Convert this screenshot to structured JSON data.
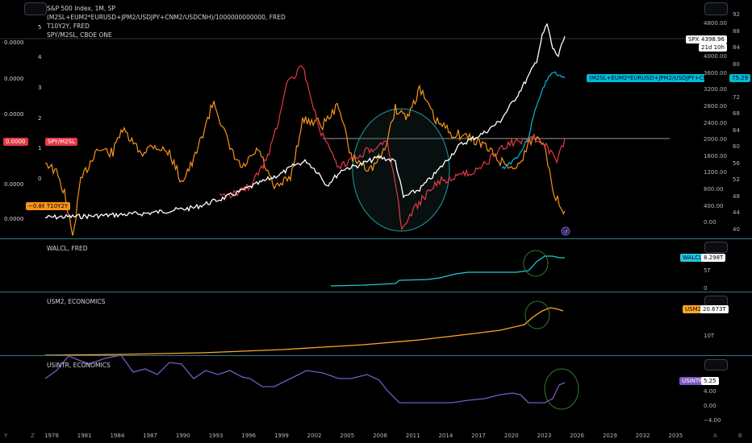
{
  "main": {
    "legend": [
      "S&P 500 Index, 1M, SP",
      "(M2SL+EUM2*EURUSD+JPM2/USDJPY+CNM2/USDCNH)/1000000000000, FRED",
      "T10Y2Y, FRED",
      "SPY/M2SL, CBOE ONE"
    ],
    "left_values": [
      "0.0000",
      "0.0000",
      "0.0000",
      "0.0000",
      "0.0000",
      "0.0000"
    ],
    "left_axis": [
      "5",
      "4",
      "3",
      "2",
      "1",
      "0"
    ],
    "right_axis_spx": [
      "4800.00",
      "4400.00",
      "4000.00",
      "3600.00",
      "3200.00",
      "2800.00",
      "2400.00",
      "2000.00",
      "1600.00",
      "1200.00",
      "800.00",
      "400.00",
      "0.00"
    ],
    "right_axis_m2": [
      "92",
      "88",
      "84",
      "80",
      "76",
      "72",
      "68",
      "64",
      "60",
      "56",
      "52",
      "48",
      "44",
      "40"
    ],
    "spx_tag": {
      "label": "SPX",
      "value": "4398.96",
      "sub": "21d 10h"
    },
    "m2_tag": {
      "label": "(M2SL+EUM2*EURUSD+JPM2/USDJPY+CNM2/US...",
      "value": "75.29"
    },
    "spy_m2_tag": {
      "value": "0.0000",
      "label": "SPY/M2SL"
    },
    "t10y2y_tag": {
      "value": "−0.88",
      "label": "T10Y2Y"
    }
  },
  "walcl": {
    "legend": "WALCL, FRED",
    "tag_label": "WALCL",
    "tag_value": "8.298T",
    "axis": [
      "5T",
      "0"
    ]
  },
  "usm2": {
    "legend": "USM2, ECONOMICS",
    "tag_label": "USM2",
    "tag_value": "20.673T",
    "axis": [
      "10T"
    ]
  },
  "usintr": {
    "legend": "USINTR, ECONOMICS",
    "tag_label": "USINTR",
    "tag_value": "5.25",
    "axis": [
      "4.00",
      "0.00",
      "−4.00"
    ]
  },
  "x_axis": [
    "1978",
    "1981",
    "1984",
    "1987",
    "1990",
    "1993",
    "1996",
    "1999",
    "2002",
    "2005",
    "2008",
    "2011",
    "2014",
    "2017",
    "2020",
    "2023",
    "2026",
    "2029",
    "2032",
    "2035"
  ],
  "bottom_icons": {
    "left": "Y",
    "z": "Z",
    "a": "A",
    "b": "B"
  },
  "colors": {
    "spx": "#ffffff",
    "m2": "#00bcd4",
    "t10y2y": "#f7931a",
    "spym2": "#e53946",
    "walcl": "#26c6da",
    "usm2": "#ffa726",
    "usintr": "#7e57c2",
    "separator": "#2a7c86",
    "circle": "#2e7d32"
  }
}
